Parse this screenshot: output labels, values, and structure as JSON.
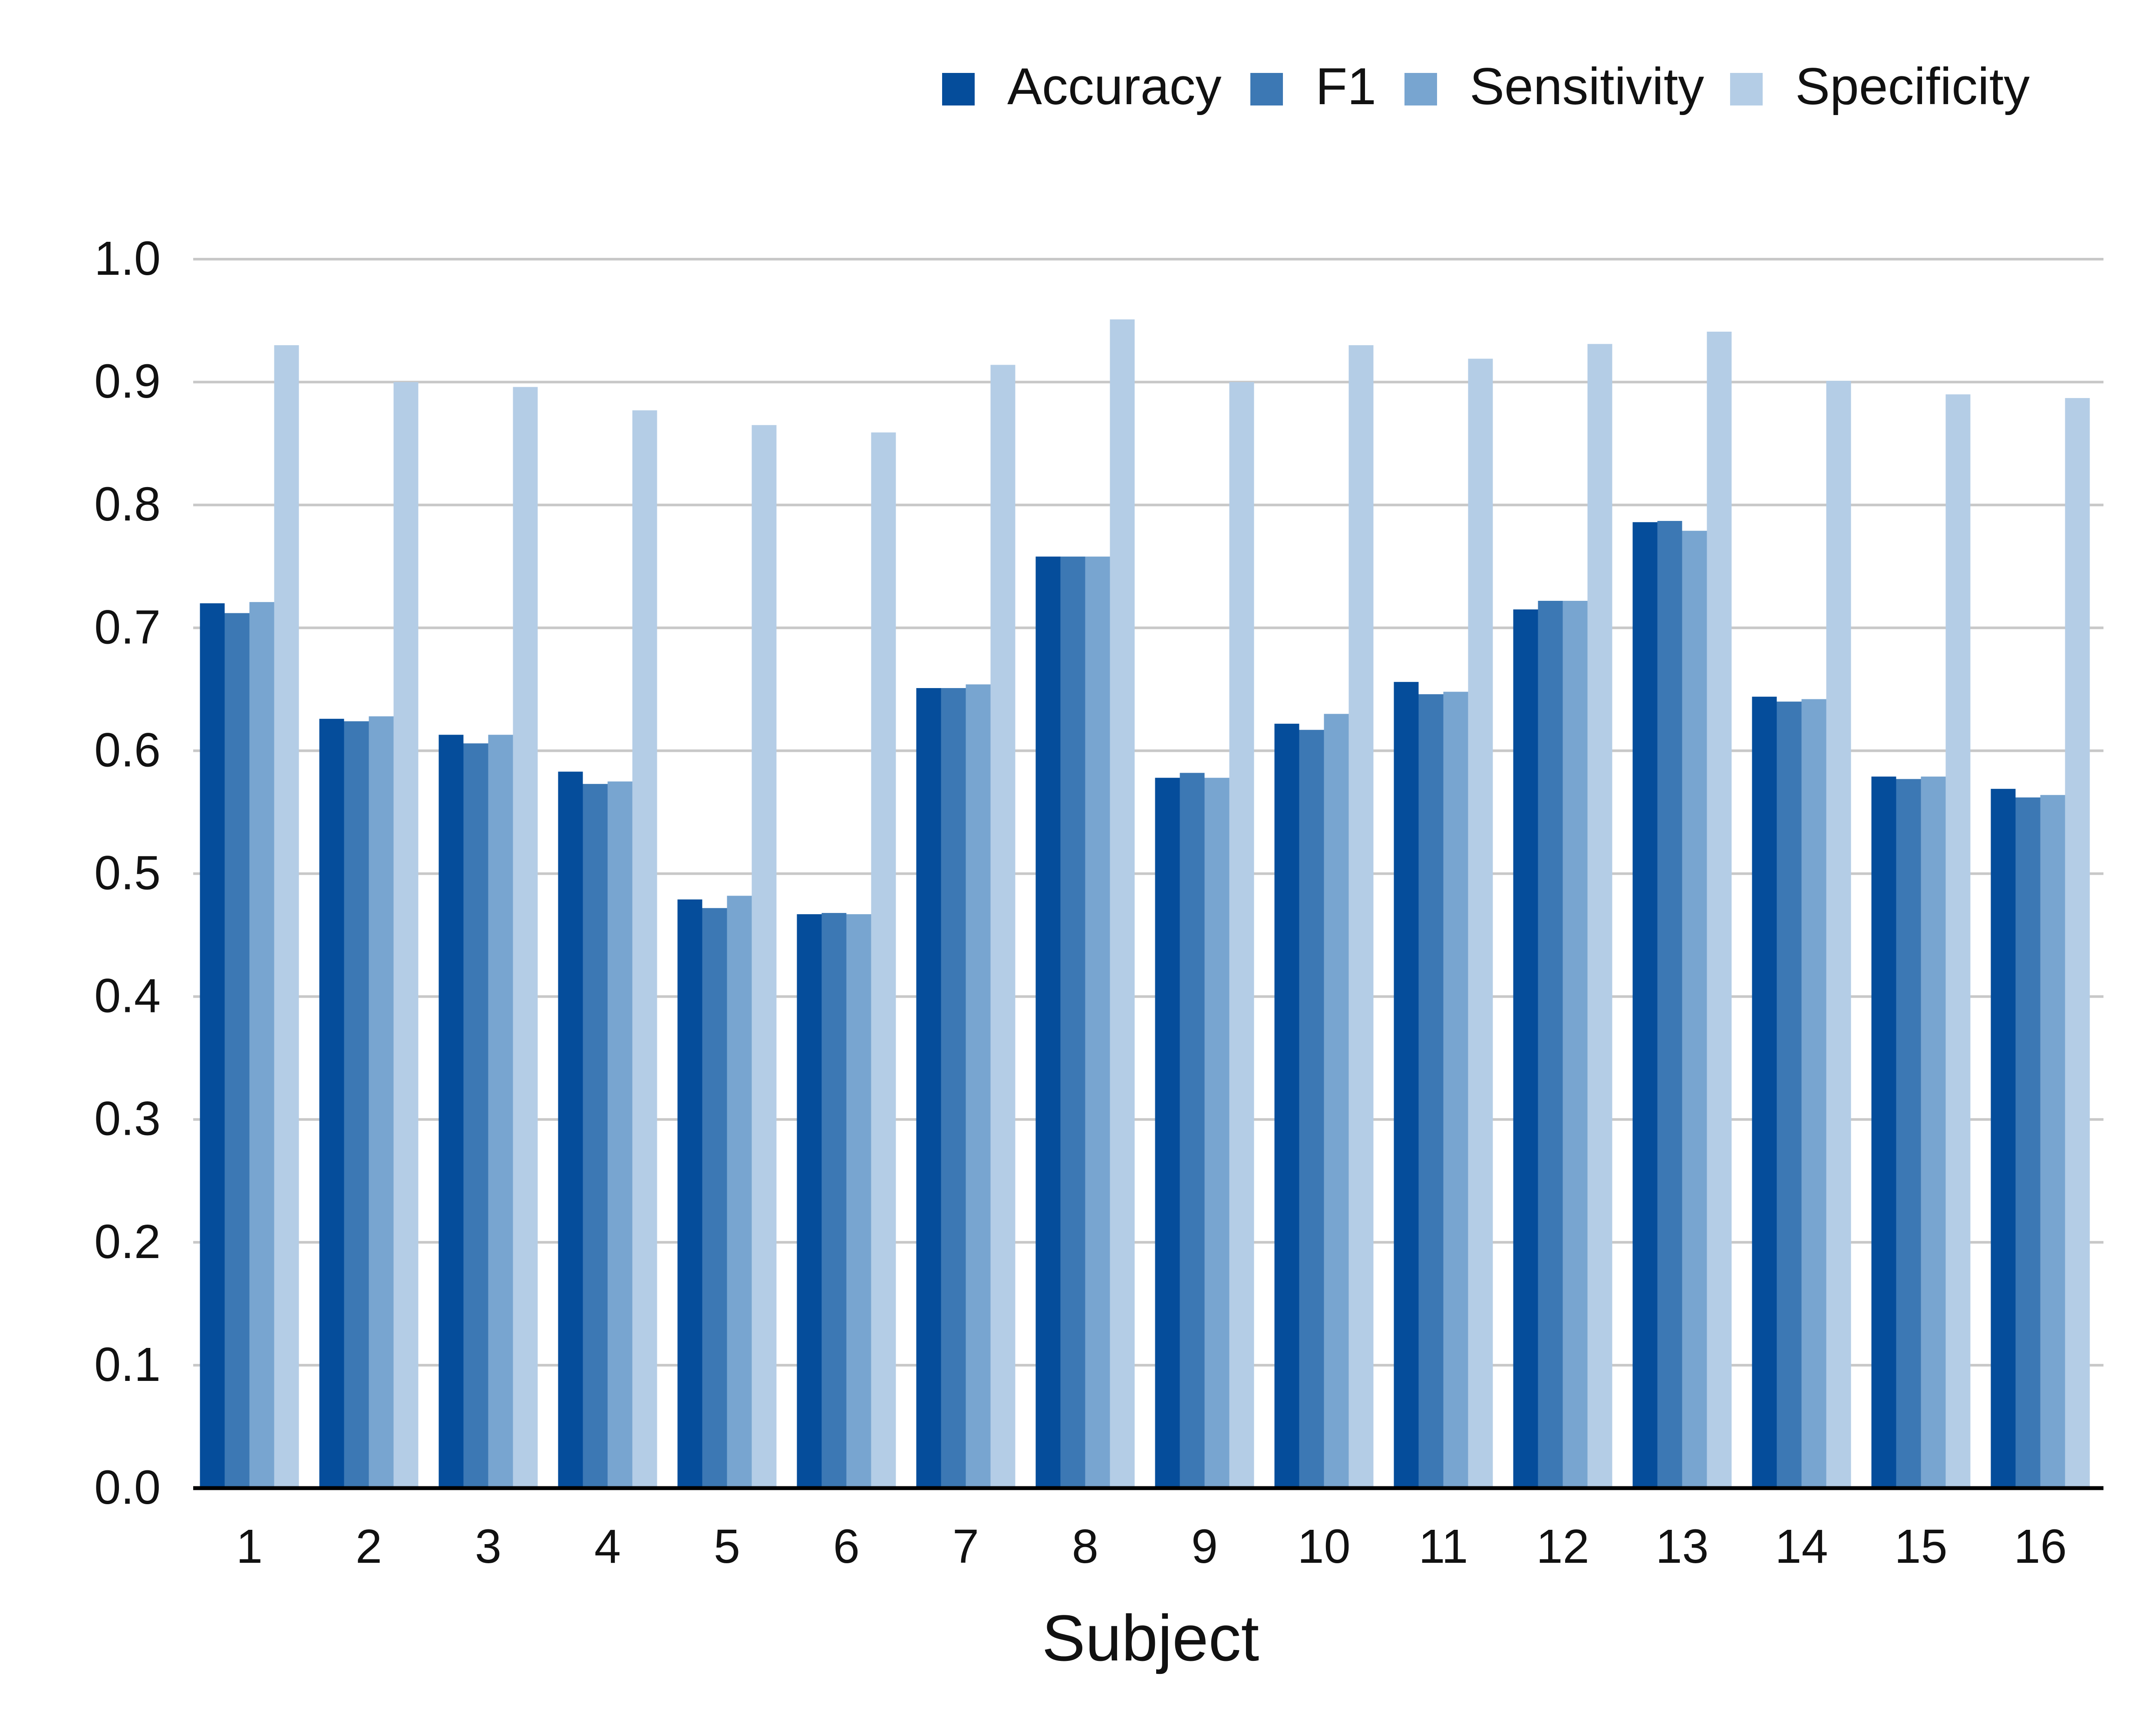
{
  "chart_data": {
    "type": "bar",
    "xlabel": "Subject",
    "ylabel": "",
    "ylim": [
      0,
      1.0
    ],
    "yticks": [
      "0.0",
      "0.1",
      "0.2",
      "0.3",
      "0.4",
      "0.5",
      "0.6",
      "0.7",
      "0.8",
      "0.9",
      "1.0"
    ],
    "categories": [
      "1",
      "2",
      "3",
      "4",
      "5",
      "6",
      "7",
      "8",
      "9",
      "10",
      "11",
      "12",
      "13",
      "14",
      "15",
      "16"
    ],
    "grid": true,
    "legend_position": "top-right",
    "series": [
      {
        "name": "Accuracy",
        "color": "#054d9b",
        "values": [
          0.72,
          0.626,
          0.613,
          0.583,
          0.479,
          0.467,
          0.651,
          0.758,
          0.578,
          0.622,
          0.656,
          0.715,
          0.786,
          0.644,
          0.579,
          0.569
        ]
      },
      {
        "name": "F1",
        "color": "#3c78b4",
        "values": [
          0.712,
          0.624,
          0.606,
          0.573,
          0.472,
          0.468,
          0.651,
          0.758,
          0.582,
          0.617,
          0.646,
          0.722,
          0.787,
          0.64,
          0.577,
          0.562
        ]
      },
      {
        "name": "Sensitivity",
        "color": "#78a5d0",
        "values": [
          0.721,
          0.628,
          0.613,
          0.575,
          0.482,
          0.467,
          0.654,
          0.758,
          0.578,
          0.63,
          0.648,
          0.722,
          0.779,
          0.642,
          0.579,
          0.564
        ]
      },
      {
        "name": "Specificity",
        "color": "#b4cde6",
        "values": [
          0.93,
          0.9,
          0.896,
          0.877,
          0.865,
          0.859,
          0.914,
          0.951,
          0.9,
          0.93,
          0.919,
          0.931,
          0.941,
          0.901,
          0.89,
          0.887
        ]
      }
    ]
  }
}
